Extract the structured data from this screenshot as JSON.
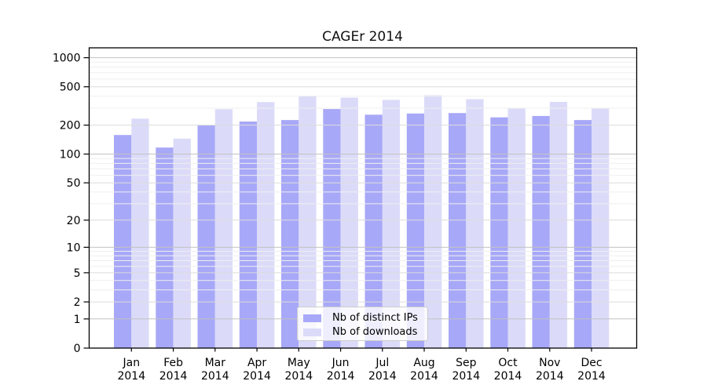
{
  "chart_data": {
    "type": "bar",
    "title": "CAGEr 2014",
    "x_categories": [
      "Jan",
      "Feb",
      "Mar",
      "Apr",
      "May",
      "Jun",
      "Jul",
      "Aug",
      "Sep",
      "Oct",
      "Nov",
      "Dec"
    ],
    "x_year": "2014",
    "series": [
      {
        "name": "Nb of distinct IPs",
        "color": "#a8a8f8",
        "values": [
          158,
          117,
          199,
          218,
          226,
          294,
          257,
          264,
          267,
          241,
          249,
          226
        ]
      },
      {
        "name": "Nb of downloads",
        "color": "#dbdbf9",
        "values": [
          234,
          145,
          293,
          347,
          398,
          386,
          366,
          408,
          372,
          303,
          349,
          299
        ]
      }
    ],
    "y_axis": {
      "scale": "log1p",
      "tick_values": [
        0,
        1,
        2,
        5,
        10,
        20,
        50,
        100,
        200,
        500,
        1000
      ],
      "top_value": 1270
    },
    "grid": {
      "decade_color": "#c2c2c2",
      "major_color": "#dcdcdc",
      "minor_color": "#efefef",
      "minor_values": [
        3,
        4,
        6,
        7,
        8,
        9,
        30,
        40,
        60,
        70,
        80,
        90,
        300,
        400,
        600,
        700,
        800,
        900
      ]
    },
    "legend": {
      "position": "inside-bottom-center",
      "labels": [
        "Nb of distinct IPs",
        "Nb of downloads"
      ]
    },
    "axis_color": "#000000"
  }
}
